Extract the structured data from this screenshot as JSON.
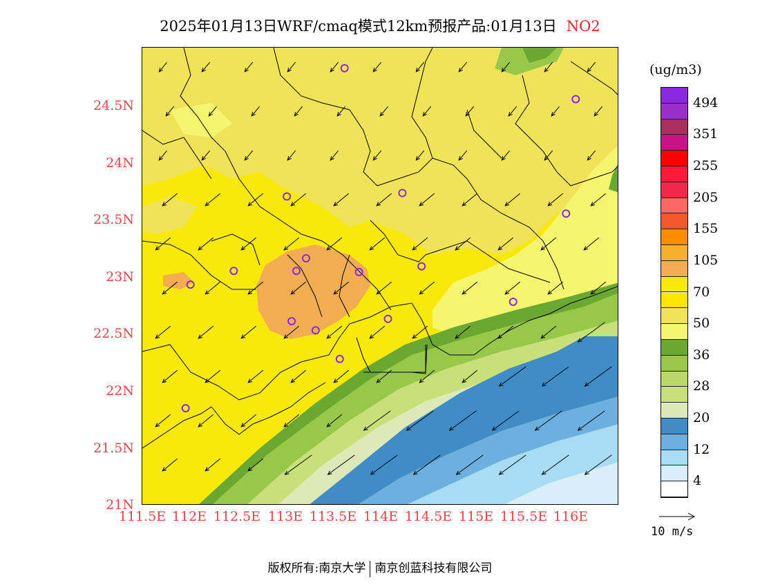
{
  "title": {
    "text": "2025年01月13日WRF/cmaq模式12km预报产品:01月13日",
    "species": "NO2"
  },
  "map": {
    "lat_labels": [
      "24.5N",
      "24N",
      "23.5N",
      "23N",
      "22.5N",
      "22N",
      "21.5N",
      "21N"
    ],
    "lon_labels": [
      "111.5E",
      "112E",
      "112.5E",
      "113E",
      "113.5E",
      "114E",
      "114.5E",
      "115E",
      "115.5E",
      "116E"
    ],
    "lat_range": [
      21.0,
      25.0
    ],
    "lon_range": [
      111.5,
      116.45
    ],
    "stations": [
      [
        113.6,
        24.82
      ],
      [
        116.0,
        24.55
      ],
      [
        113.0,
        23.7
      ],
      [
        114.2,
        23.73
      ],
      [
        115.9,
        23.55
      ],
      [
        112.45,
        23.05
      ],
      [
        112.0,
        22.93
      ],
      [
        113.1,
        23.05
      ],
      [
        113.2,
        23.16
      ],
      [
        113.75,
        23.04
      ],
      [
        114.4,
        23.09
      ],
      [
        113.05,
        22.61
      ],
      [
        113.3,
        22.53
      ],
      [
        113.55,
        22.28
      ],
      [
        114.05,
        22.63
      ],
      [
        115.35,
        22.78
      ],
      [
        111.95,
        21.85
      ]
    ],
    "colors": {
      "orange": "#f2ad52",
      "yellow": "#f9e90a",
      "light_yellow": "#f0e35a",
      "pale_yellow": "#f5f570",
      "green_dark": "#6aa832",
      "green_mid": "#98c84a",
      "green_light": "#c8e07a",
      "pale_green": "#dfe8b8",
      "blue_dark": "#3f8cc6",
      "blue_mid": "#6cb0e0",
      "blue_light": "#a8dcf4",
      "blue_pale": "#d8eef8"
    }
  },
  "legend": {
    "unit": "(ug/m3)",
    "colors": [
      "#ffffff",
      "#d8eef8",
      "#a8dcf4",
      "#6cb0e0",
      "#3f8cc6",
      "#dfe8b8",
      "#c8e07a",
      "#b8d86a",
      "#98c84a",
      "#6aa832",
      "#f5f570",
      "#f0e35a",
      "#fce600",
      "#f9e90a",
      "#f2ad52",
      "#f6b030",
      "#ff8c00",
      "#f05a28",
      "#ff6666",
      "#f0284a",
      "#ff1a3c",
      "#ff0000",
      "#c8128a",
      "#a8305a",
      "#9a30c8",
      "#8a2ae0"
    ],
    "ticks": [
      "4",
      "12",
      "20",
      "28",
      "36",
      "50",
      "70",
      "105",
      "155",
      "205",
      "255",
      "351",
      "494"
    ]
  },
  "wind_key": {
    "label": "10 m/s"
  },
  "footer": {
    "left": "版权所有:南京大学",
    "right": "南京创蓝科技有限公司"
  }
}
